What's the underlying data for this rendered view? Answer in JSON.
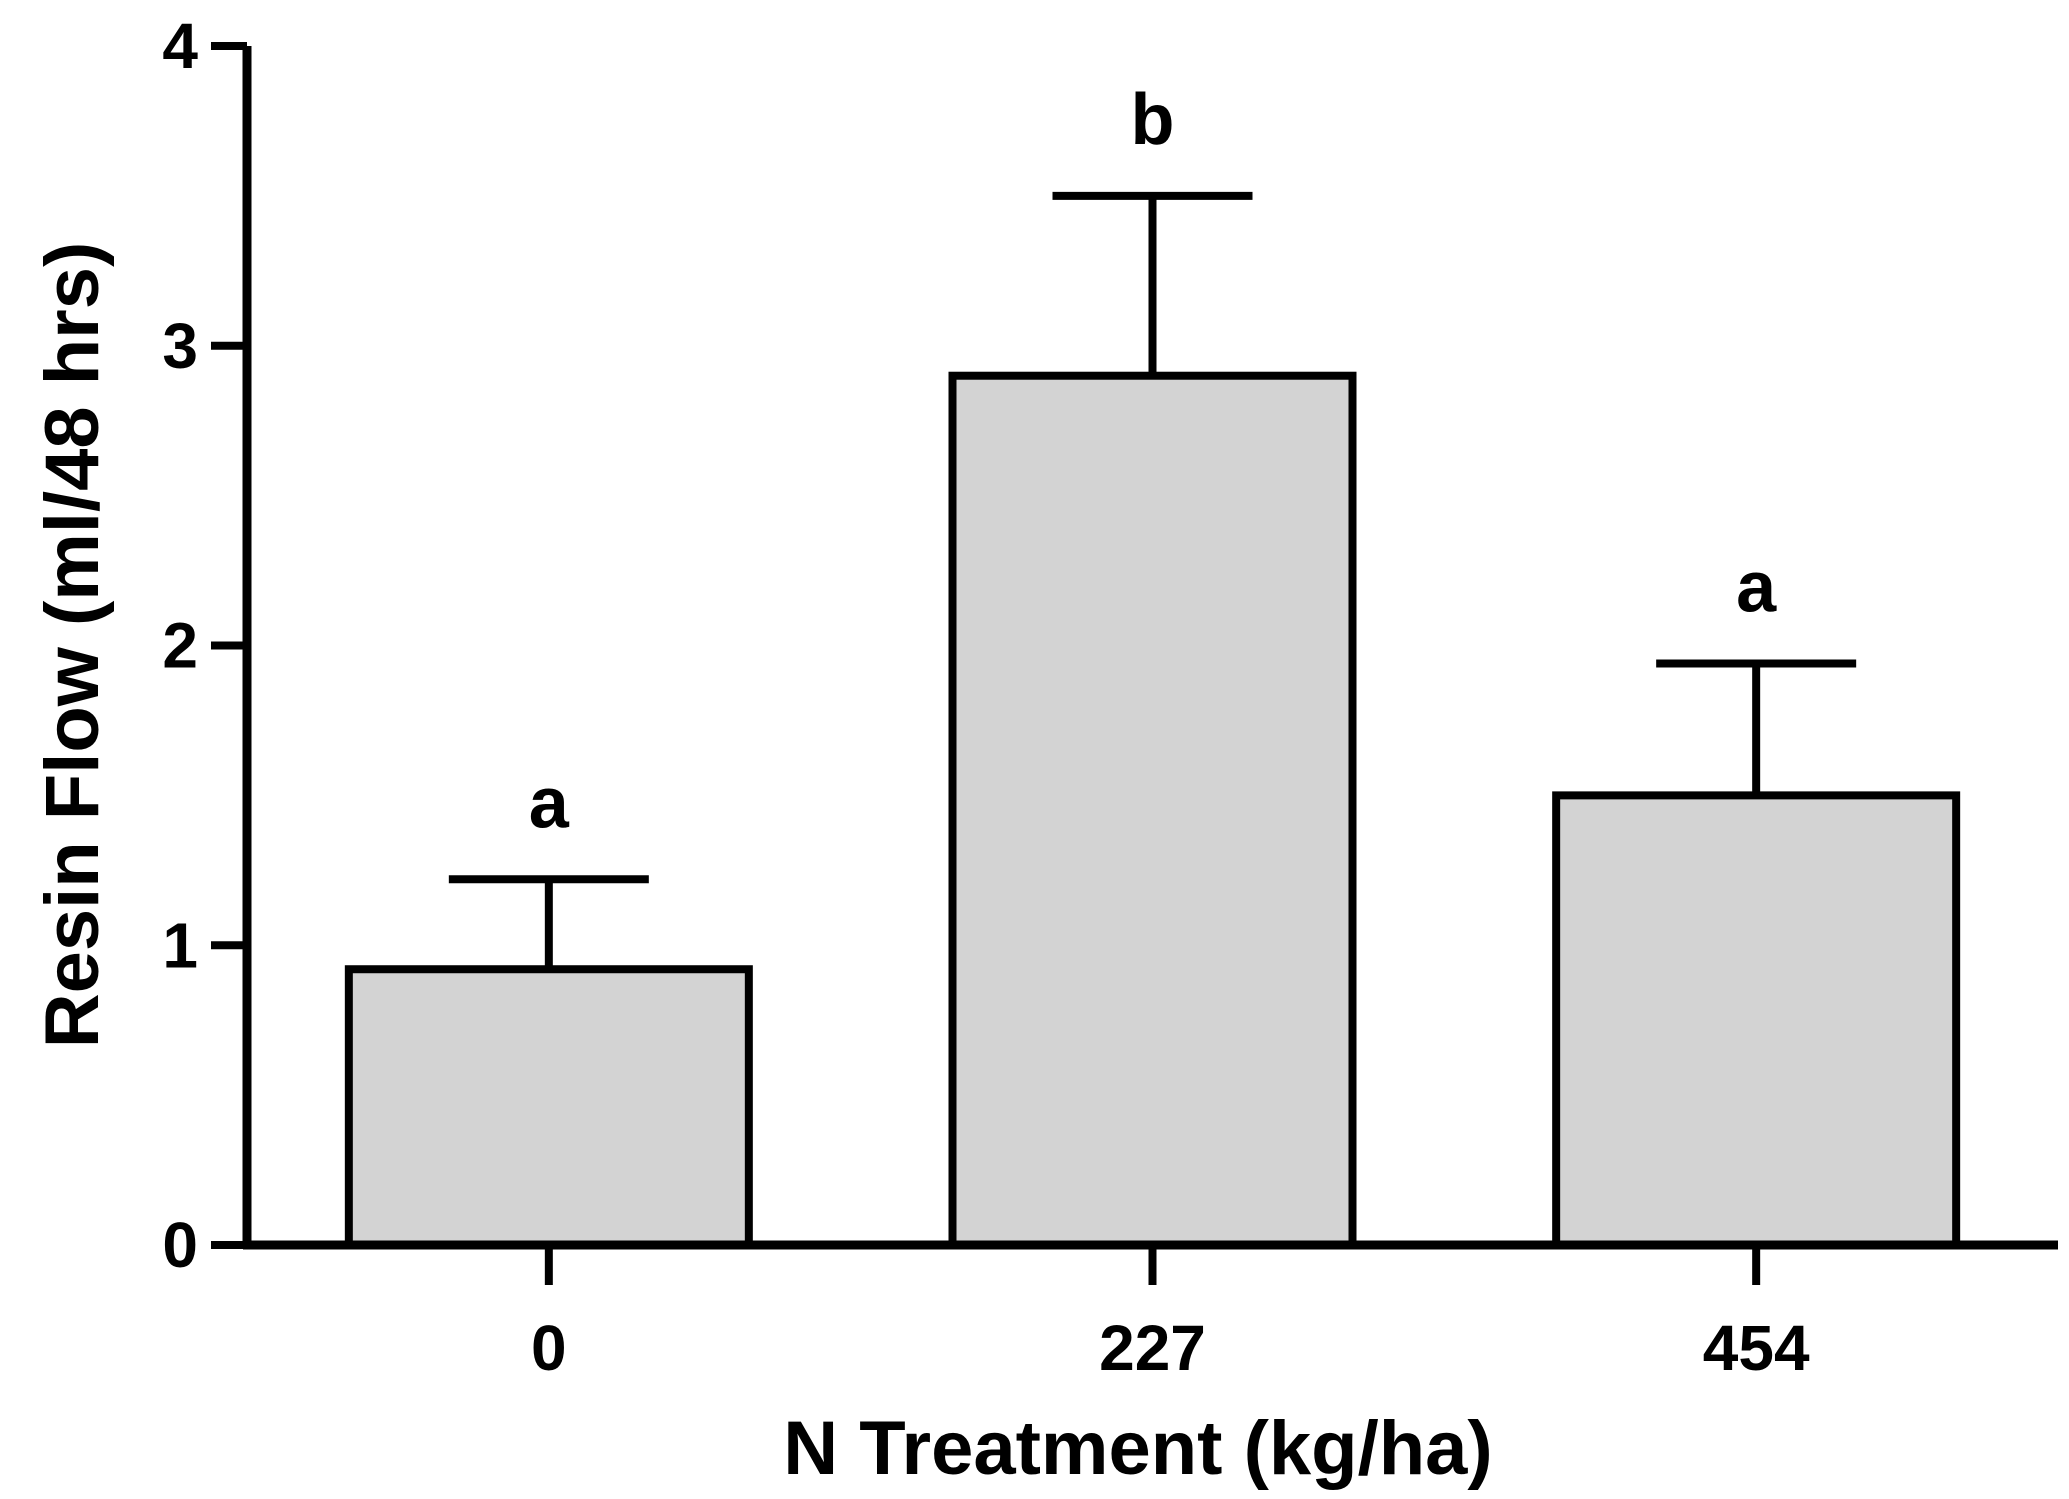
{
  "chart_data": {
    "type": "bar",
    "title": "",
    "xlabel": "N Treatment (kg/ha)",
    "ylabel": "Resin Flow (ml/48 hrs)",
    "ylim": [
      0,
      4
    ],
    "yticks": [
      0,
      1,
      2,
      3,
      4
    ],
    "categories": [
      "0",
      "227",
      "454"
    ],
    "values": [
      0.92,
      2.9,
      1.5
    ],
    "error_upper": [
      0.3,
      0.6,
      0.44
    ],
    "significance_labels": [
      "a",
      "b",
      "a"
    ],
    "bar_color": "#d3d3d3",
    "line_color": "#000000",
    "grid": false,
    "legend": "none"
  }
}
